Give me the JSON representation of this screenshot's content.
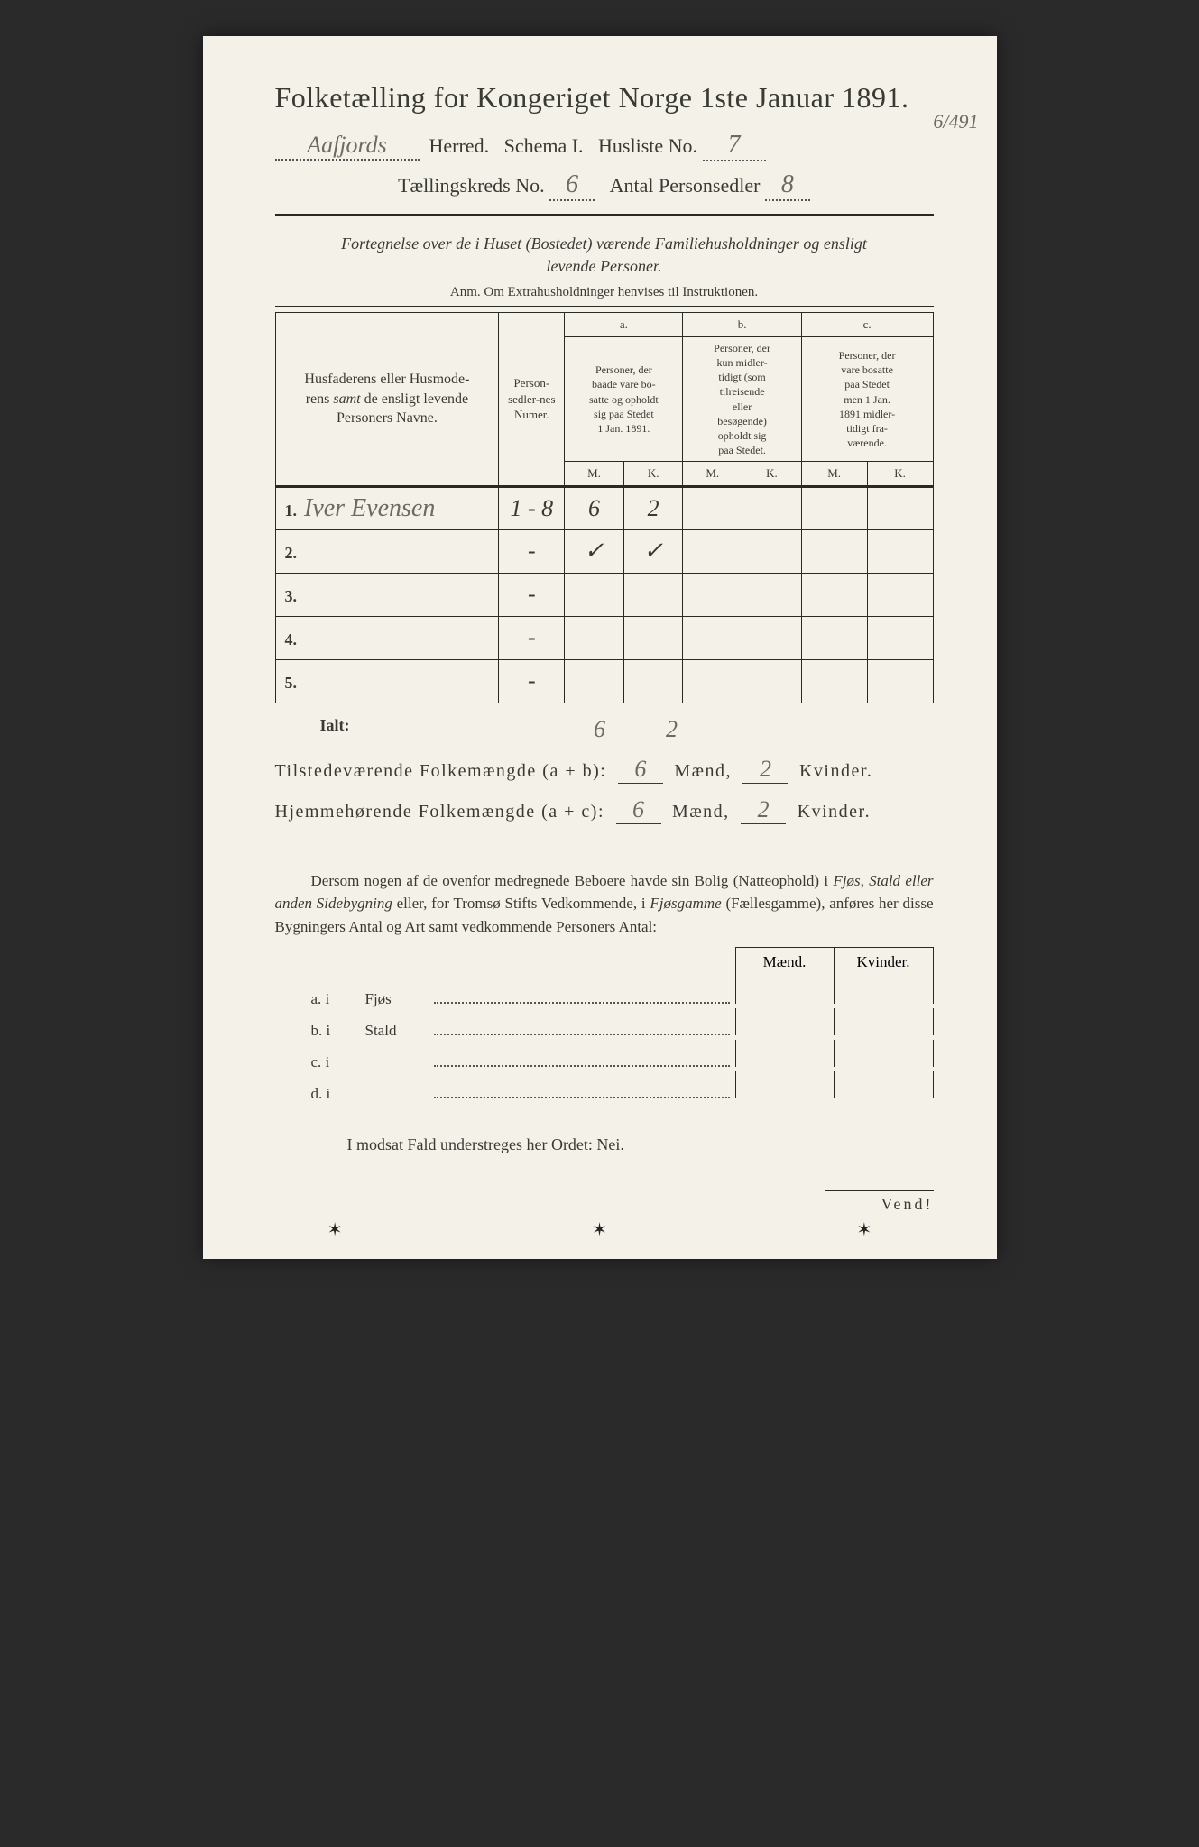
{
  "colors": {
    "page_bg": "#f4f1e8",
    "body_bg": "#2a2a2a",
    "ink": "#3a3a35",
    "handwriting": "#6b6b63",
    "rule": "#2a2a25"
  },
  "header": {
    "title": "Folketælling for Kongeriget Norge 1ste Januar 1891.",
    "herred_value": "Aafjords",
    "herred_label": "Herred.",
    "schema_label": "Schema I.",
    "husliste_label": "Husliste No.",
    "husliste_value": "7",
    "margin_note": "6/491",
    "kreds_label": "Tællingskreds No.",
    "kreds_value": "6",
    "personsedler_label": "Antal Personsedler",
    "personsedler_value": "8"
  },
  "subtitle": {
    "line1": "Fortegnelse over de i Huset (Bostedet) værende Familiehusholdninger og ensligt",
    "line2": "levende Personer.",
    "anm": "Anm. Om Extrahusholdninger henvises til Instruktionen."
  },
  "table": {
    "col_names": "Husfaderens eller Husmoderens samt de ensligt levende Personers Navne.",
    "col_numer": "Person-sedler-nes Numer.",
    "col_a_head": "a.",
    "col_a_text": "Personer, der baade vare bosatte og opholdt sig paa Stedet 1 Jan. 1891.",
    "col_b_head": "b.",
    "col_b_text": "Personer, der kun midlertidigt (som tilreisende eller besøgende) opholdt sig paa Stedet.",
    "col_c_head": "c.",
    "col_c_text": "Personer, der vare bosatte paa Stedet men 1 Jan. 1891 midlertidigt fraværende.",
    "M": "M.",
    "K": "K.",
    "rows": [
      {
        "n": "1.",
        "name": "Iver Evensen",
        "numer": "1 - 8",
        "aM": "6",
        "aK": "2",
        "bM": "",
        "bK": "",
        "cM": "",
        "cK": ""
      },
      {
        "n": "2.",
        "name": "",
        "numer": "-",
        "aM": "✓",
        "aK": "✓",
        "bM": "",
        "bK": "",
        "cM": "",
        "cK": ""
      },
      {
        "n": "3.",
        "name": "",
        "numer": "-",
        "aM": "",
        "aK": "",
        "bM": "",
        "bK": "",
        "cM": "",
        "cK": ""
      },
      {
        "n": "4.",
        "name": "",
        "numer": "-",
        "aM": "",
        "aK": "",
        "bM": "",
        "bK": "",
        "cM": "",
        "cK": ""
      },
      {
        "n": "5.",
        "name": "",
        "numer": "-",
        "aM": "",
        "aK": "",
        "bM": "",
        "bK": "",
        "cM": "",
        "cK": ""
      }
    ],
    "ialt_label": "Ialt:",
    "ialt_aM": "6",
    "ialt_aK": "2"
  },
  "summary": {
    "line1_pre": "Tilstedeværende Folkemængde (a + b):",
    "line1_m": "6",
    "line1_mlabel": "Mænd,",
    "line1_k": "2",
    "line1_klabel": "Kvinder.",
    "line2_pre": "Hjemmehørende Folkemængde (a + c):",
    "line2_m": "6",
    "line2_k": "2"
  },
  "para": "Dersom nogen af de ovenfor medregnede Beboere havde sin Bolig (Natteophold) i Fjøs, Stald eller anden Sidebygning eller, for Tromsø Stifts Vedkommende, i Fjøsgamme (Fællesgamme), anføres her disse Bygningers Antal og Art samt vedkommende Personers Antal:",
  "mk": {
    "m": "Mænd.",
    "k": "Kvinder."
  },
  "subrows": [
    {
      "label": "a.  i",
      "text": "Fjøs"
    },
    {
      "label": "b.  i",
      "text": "Stald"
    },
    {
      "label": "c.  i",
      "text": ""
    },
    {
      "label": "d.  i",
      "text": ""
    }
  ],
  "nei": "I modsat Fald understreges her Ordet: Nei.",
  "vend": "Vend!"
}
